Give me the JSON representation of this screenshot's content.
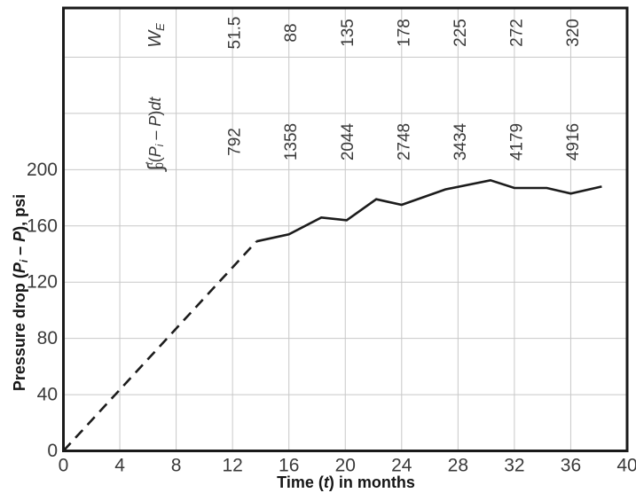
{
  "chart_data": {
    "type": "line",
    "title": "",
    "xlabel": "Time (t) in months",
    "ylabel": "Pressure drop (Pi – P), psi",
    "xlabel_parts": [
      {
        "t": "Time ("
      },
      {
        "t": "t",
        "i": 1
      },
      {
        "t": ") in months"
      }
    ],
    "ylabel_parts": [
      {
        "t": "Pressure drop ("
      },
      {
        "t": "P",
        "i": 1
      },
      {
        "t": "i",
        "sub": 1,
        "i": 1
      },
      {
        "t": " – "
      },
      {
        "t": "P",
        "i": 1
      },
      {
        "t": "), psi"
      }
    ],
    "xlim": [
      0,
      40
    ],
    "ylim": [
      0,
      315
    ],
    "x_ticks": [
      0,
      4,
      8,
      12,
      16,
      20,
      24,
      28,
      32,
      36,
      40
    ],
    "y_ticks": [
      0,
      40,
      80,
      120,
      160,
      200
    ],
    "x_gridlines": [
      4,
      8,
      12,
      16,
      20,
      24,
      28,
      32,
      36
    ],
    "y_gridlines": [
      40,
      80,
      120,
      160,
      200,
      240,
      280
    ],
    "grid": true,
    "legend": "none",
    "annotations": {
      "months": [
        12,
        16,
        20,
        24,
        28,
        32,
        36
      ],
      "rows": [
        {
          "id": "we",
          "label_text": "WE",
          "label_parts": [
            {
              "t": "W",
              "i": 1
            },
            {
              "t": "E",
              "sub": 1,
              "i": 1
            }
          ],
          "label_month": 6.5,
          "label_y": 40,
          "value_y": 37,
          "values": [
            "51.5",
            "88",
            "135",
            "178",
            "225",
            "272",
            "320"
          ]
        },
        {
          "id": "integral",
          "label_text": "∫0t(Pi – P)dt",
          "label_parts": [
            {
              "t": "∫",
              "big": 1
            },
            {
              "t": "t",
              "sup": 1,
              "i": 1
            },
            {
              "t": "0",
              "sub": 1,
              "dx": -7
            },
            {
              "t": "("
            },
            {
              "t": "P",
              "i": 1
            },
            {
              "t": "i",
              "sub": 1,
              "i": 1
            },
            {
              "t": " – "
            },
            {
              "t": "P",
              "i": 1
            },
            {
              "t": ")"
            },
            {
              "t": "dt",
              "i": 1
            }
          ],
          "label_month": 6.5,
          "label_y": 151,
          "value_y": 160,
          "values": [
            "792",
            "1358",
            "2044",
            "2748",
            "3434",
            "4179",
            "4916"
          ]
        }
      ]
    },
    "series": [
      {
        "name": "extrapolated-pressure-drop",
        "style": "dashed",
        "points": [
          [
            0,
            0
          ],
          [
            13.7,
            149
          ]
        ]
      },
      {
        "name": "observed-pressure-drop",
        "style": "solid",
        "points": [
          [
            13.7,
            149
          ],
          [
            16,
            154
          ],
          [
            18.3,
            166
          ],
          [
            20.1,
            164
          ],
          [
            22.2,
            179
          ],
          [
            24,
            175
          ],
          [
            27.1,
            186
          ],
          [
            30.3,
            192.5
          ],
          [
            32,
            187
          ],
          [
            34.3,
            187
          ],
          [
            36,
            183
          ],
          [
            38.2,
            188
          ]
        ]
      }
    ],
    "colors": {
      "line": "#1c1c1c",
      "grid": "#c8c8c8",
      "border": "#1a1a1a",
      "tick_text": "#3a3a3a",
      "title_text": "#161616",
      "background": "#ffffff"
    }
  }
}
